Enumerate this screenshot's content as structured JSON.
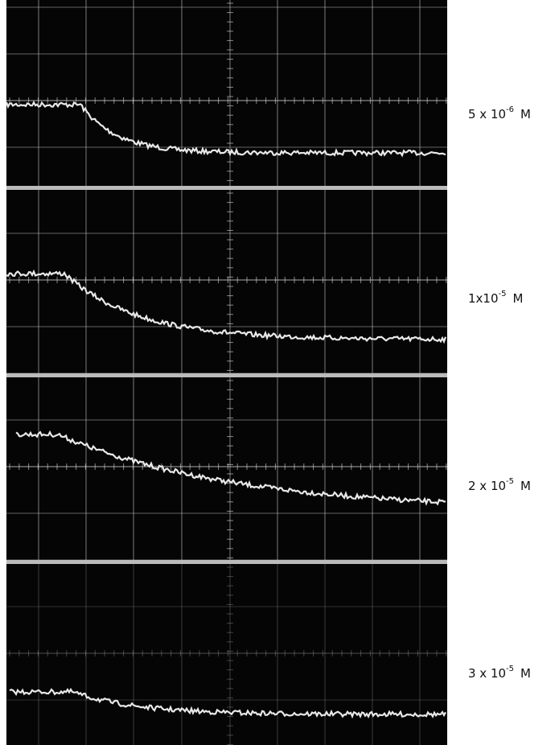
{
  "labels": [
    {
      "base": "5 x 10",
      "exponent": "-6",
      "unit": "M"
    },
    {
      "base": "1x10",
      "exponent": "-5",
      "unit": "M"
    },
    {
      "base": "2 x 10",
      "exponent": "-5",
      "unit": "M"
    },
    {
      "base": "3 x 10",
      "exponent": "-5",
      "unit": "M"
    }
  ]
}
